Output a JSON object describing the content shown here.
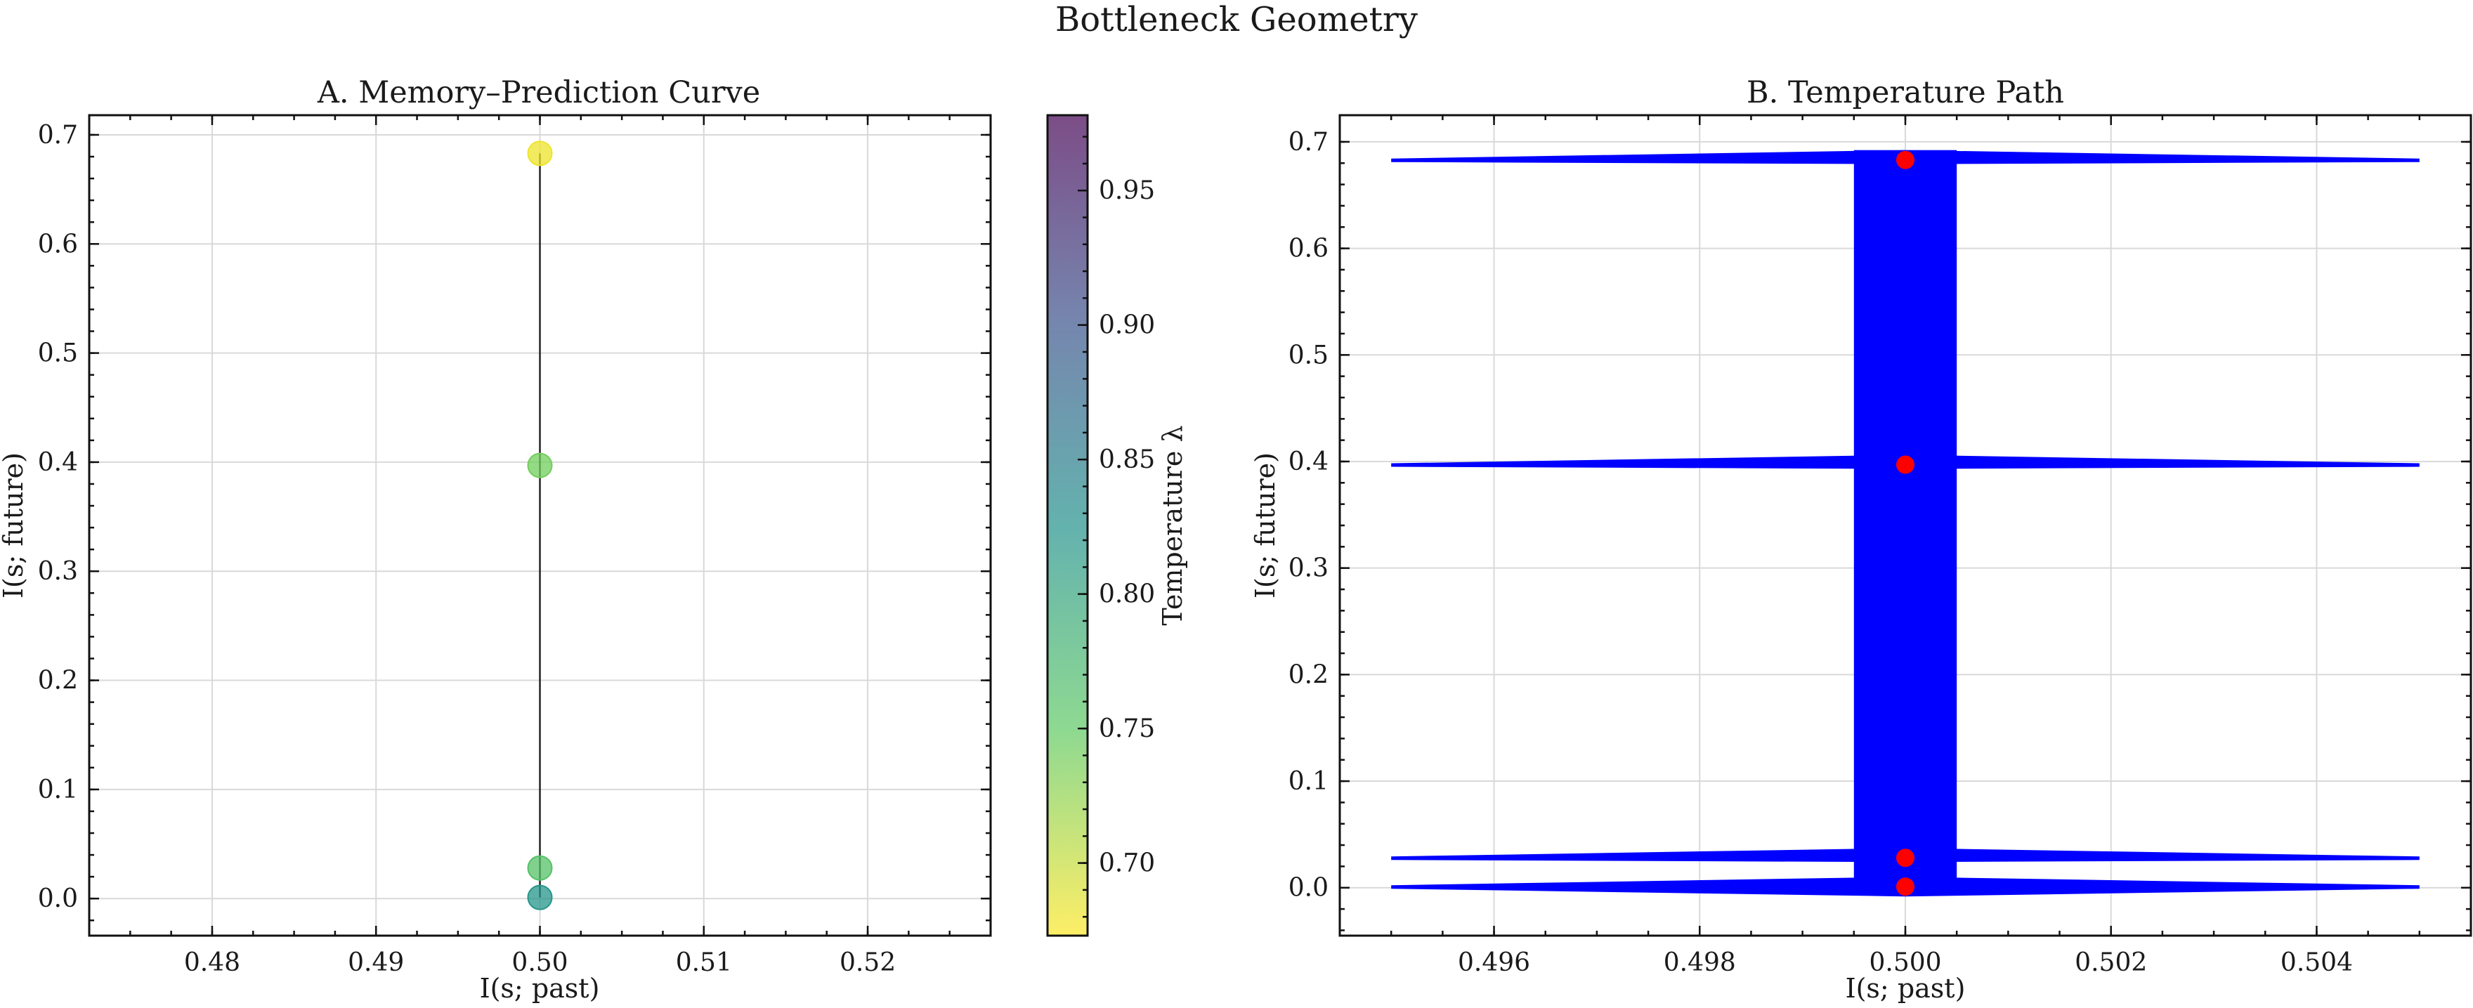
{
  "figure_title": "Bottleneck Geometry",
  "chart_data": [
    {
      "type": "scatter",
      "title": "A. Memory–Prediction Curve",
      "xlabel": "I(s; past)",
      "ylabel": "I(s; future)",
      "xlim": [
        0.4725,
        0.5275
      ],
      "ylim": [
        -0.034,
        0.718
      ],
      "xticks": [
        0.48,
        0.49,
        0.5,
        0.51,
        0.52
      ],
      "xtick_labels": [
        "0.48",
        "0.49",
        "0.50",
        "0.51",
        "0.52"
      ],
      "yticks": [
        0.0,
        0.1,
        0.2,
        0.3,
        0.4,
        0.5,
        0.6,
        0.7
      ],
      "ytick_labels": [
        "0.0",
        "0.1",
        "0.2",
        "0.3",
        "0.4",
        "0.5",
        "0.6",
        "0.7"
      ],
      "grid": true,
      "connecting_line": true,
      "points": [
        {
          "x": 0.5,
          "y": 0.683,
          "temperature": 0.68
        },
        {
          "x": 0.5,
          "y": 0.397,
          "temperature": 0.74
        },
        {
          "x": 0.5,
          "y": 0.028,
          "temperature": 0.76
        },
        {
          "x": 0.5,
          "y": 0.001,
          "temperature": 0.82
        }
      ],
      "colorbar": {
        "label": "Temperature λ",
        "colormap": "viridis_r",
        "range": [
          0.673,
          0.978
        ],
        "ticks": [
          0.7,
          0.75,
          0.8,
          0.85,
          0.9,
          0.95
        ],
        "tick_labels": [
          "0.70",
          "0.75",
          "0.80",
          "0.85",
          "0.90",
          "0.95"
        ]
      }
    },
    {
      "type": "line",
      "title": "B. Temperature Path",
      "xlabel": "I(s; past)",
      "ylabel": "I(s; future)",
      "xlim": [
        0.4945,
        0.5055
      ],
      "ylim": [
        -0.045,
        0.725
      ],
      "xticks": [
        0.496,
        0.498,
        0.5,
        0.502,
        0.504
      ],
      "xtick_labels": [
        "0.496",
        "0.498",
        "0.500",
        "0.502",
        "0.504"
      ],
      "yticks": [
        0.0,
        0.1,
        0.2,
        0.3,
        0.4,
        0.5,
        0.6,
        0.7
      ],
      "ytick_labels": [
        "0.0",
        "0.1",
        "0.2",
        "0.3",
        "0.4",
        "0.5",
        "0.6",
        "0.7"
      ],
      "grid": true,
      "series": [
        {
          "values_x": [
            0.5,
            0.5,
            0.5,
            0.5
          ],
          "values_y": [
            0.683,
            0.397,
            0.028,
            0.001
          ],
          "color": "#0000ff"
        }
      ],
      "points": [
        {
          "x": 0.5,
          "y": 0.683
        },
        {
          "x": 0.5,
          "y": 0.397
        },
        {
          "x": 0.5,
          "y": 0.028
        },
        {
          "x": 0.5,
          "y": 0.001
        }
      ],
      "arrow_span_x": [
        0.495,
        0.505
      ],
      "arrow_shaft_x": [
        0.4995,
        0.5005
      ],
      "arrow_color": "#0000ff",
      "point_color": "#ff0000"
    }
  ]
}
